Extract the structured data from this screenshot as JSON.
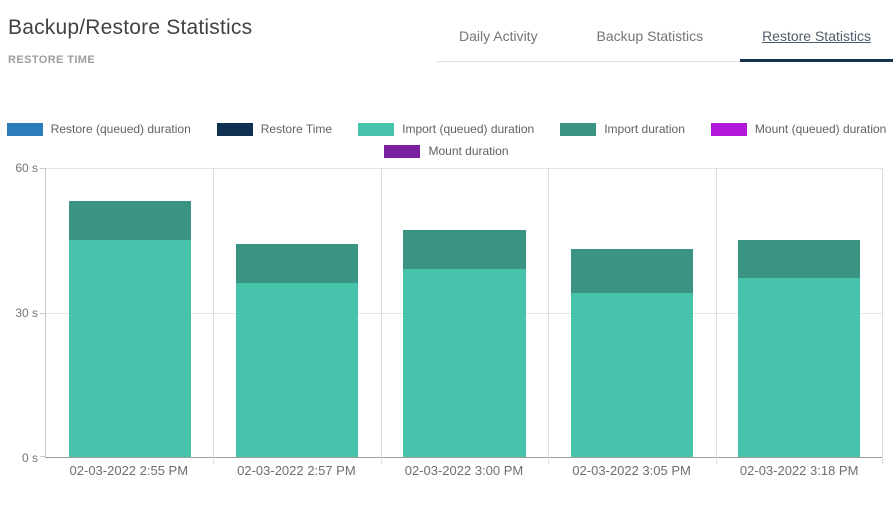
{
  "header": {
    "title": "Backup/Restore Statistics",
    "subtitle": "RESTORE TIME"
  },
  "tabs": [
    {
      "label": "Daily Activity",
      "active": false
    },
    {
      "label": "Backup Statistics",
      "active": false
    },
    {
      "label": "Restore Statistics",
      "active": true
    }
  ],
  "colors": {
    "tab_active_underline": "#16324f",
    "tab_inactive_text": "#757575",
    "tab_active_text": "#4e5d6b",
    "grid_line": "#e5e5e5",
    "axis_line": "#9e9e9e"
  },
  "legend": [
    {
      "label": "Restore (queued) duration",
      "color": "#2c7cba"
    },
    {
      "label": "Restore Time",
      "color": "#0e3151"
    },
    {
      "label": "Import (queued) duration",
      "color": "#47c2ab"
    },
    {
      "label": "Import duration",
      "color": "#3b9384"
    },
    {
      "label": "Mount (queued) duration",
      "color": "#b218da"
    },
    {
      "label": "Mount duration",
      "color": "#7b1fa2"
    }
  ],
  "chart_data": {
    "type": "bar",
    "stacked": true,
    "title": "RESTORE TIME",
    "categories": [
      "02-03-2022 2:55 PM",
      "02-03-2022 2:57 PM",
      "02-03-2022 3:00 PM",
      "02-03-2022 3:05 PM",
      "02-03-2022 3:18 PM"
    ],
    "series": [
      {
        "name": "Restore (queued) duration",
        "color": "#2c7cba",
        "values": [
          0,
          0,
          0,
          0,
          0
        ]
      },
      {
        "name": "Restore Time",
        "color": "#0e3151",
        "values": [
          0,
          0,
          0,
          0,
          0
        ]
      },
      {
        "name": "Import (queued) duration",
        "color": "#47c2ab",
        "values": [
          45,
          36,
          39,
          34,
          37
        ]
      },
      {
        "name": "Import duration",
        "color": "#3b9384",
        "values": [
          8,
          8,
          8,
          9,
          8
        ]
      },
      {
        "name": "Mount (queued) duration",
        "color": "#b218da",
        "values": [
          0,
          0,
          0,
          0,
          0
        ]
      },
      {
        "name": "Mount duration",
        "color": "#7b1fa2",
        "values": [
          0,
          0,
          0,
          0,
          0
        ]
      }
    ],
    "totals": [
      53,
      44,
      47,
      43,
      45
    ],
    "y_unit": "s",
    "yticks": [
      {
        "label": "60 s",
        "value": 60
      },
      {
        "label": "30 s",
        "value": 30
      },
      {
        "label": "0 s",
        "value": 0
      }
    ],
    "ylim": [
      0,
      60
    ],
    "grid": true,
    "legend_position": "top"
  }
}
